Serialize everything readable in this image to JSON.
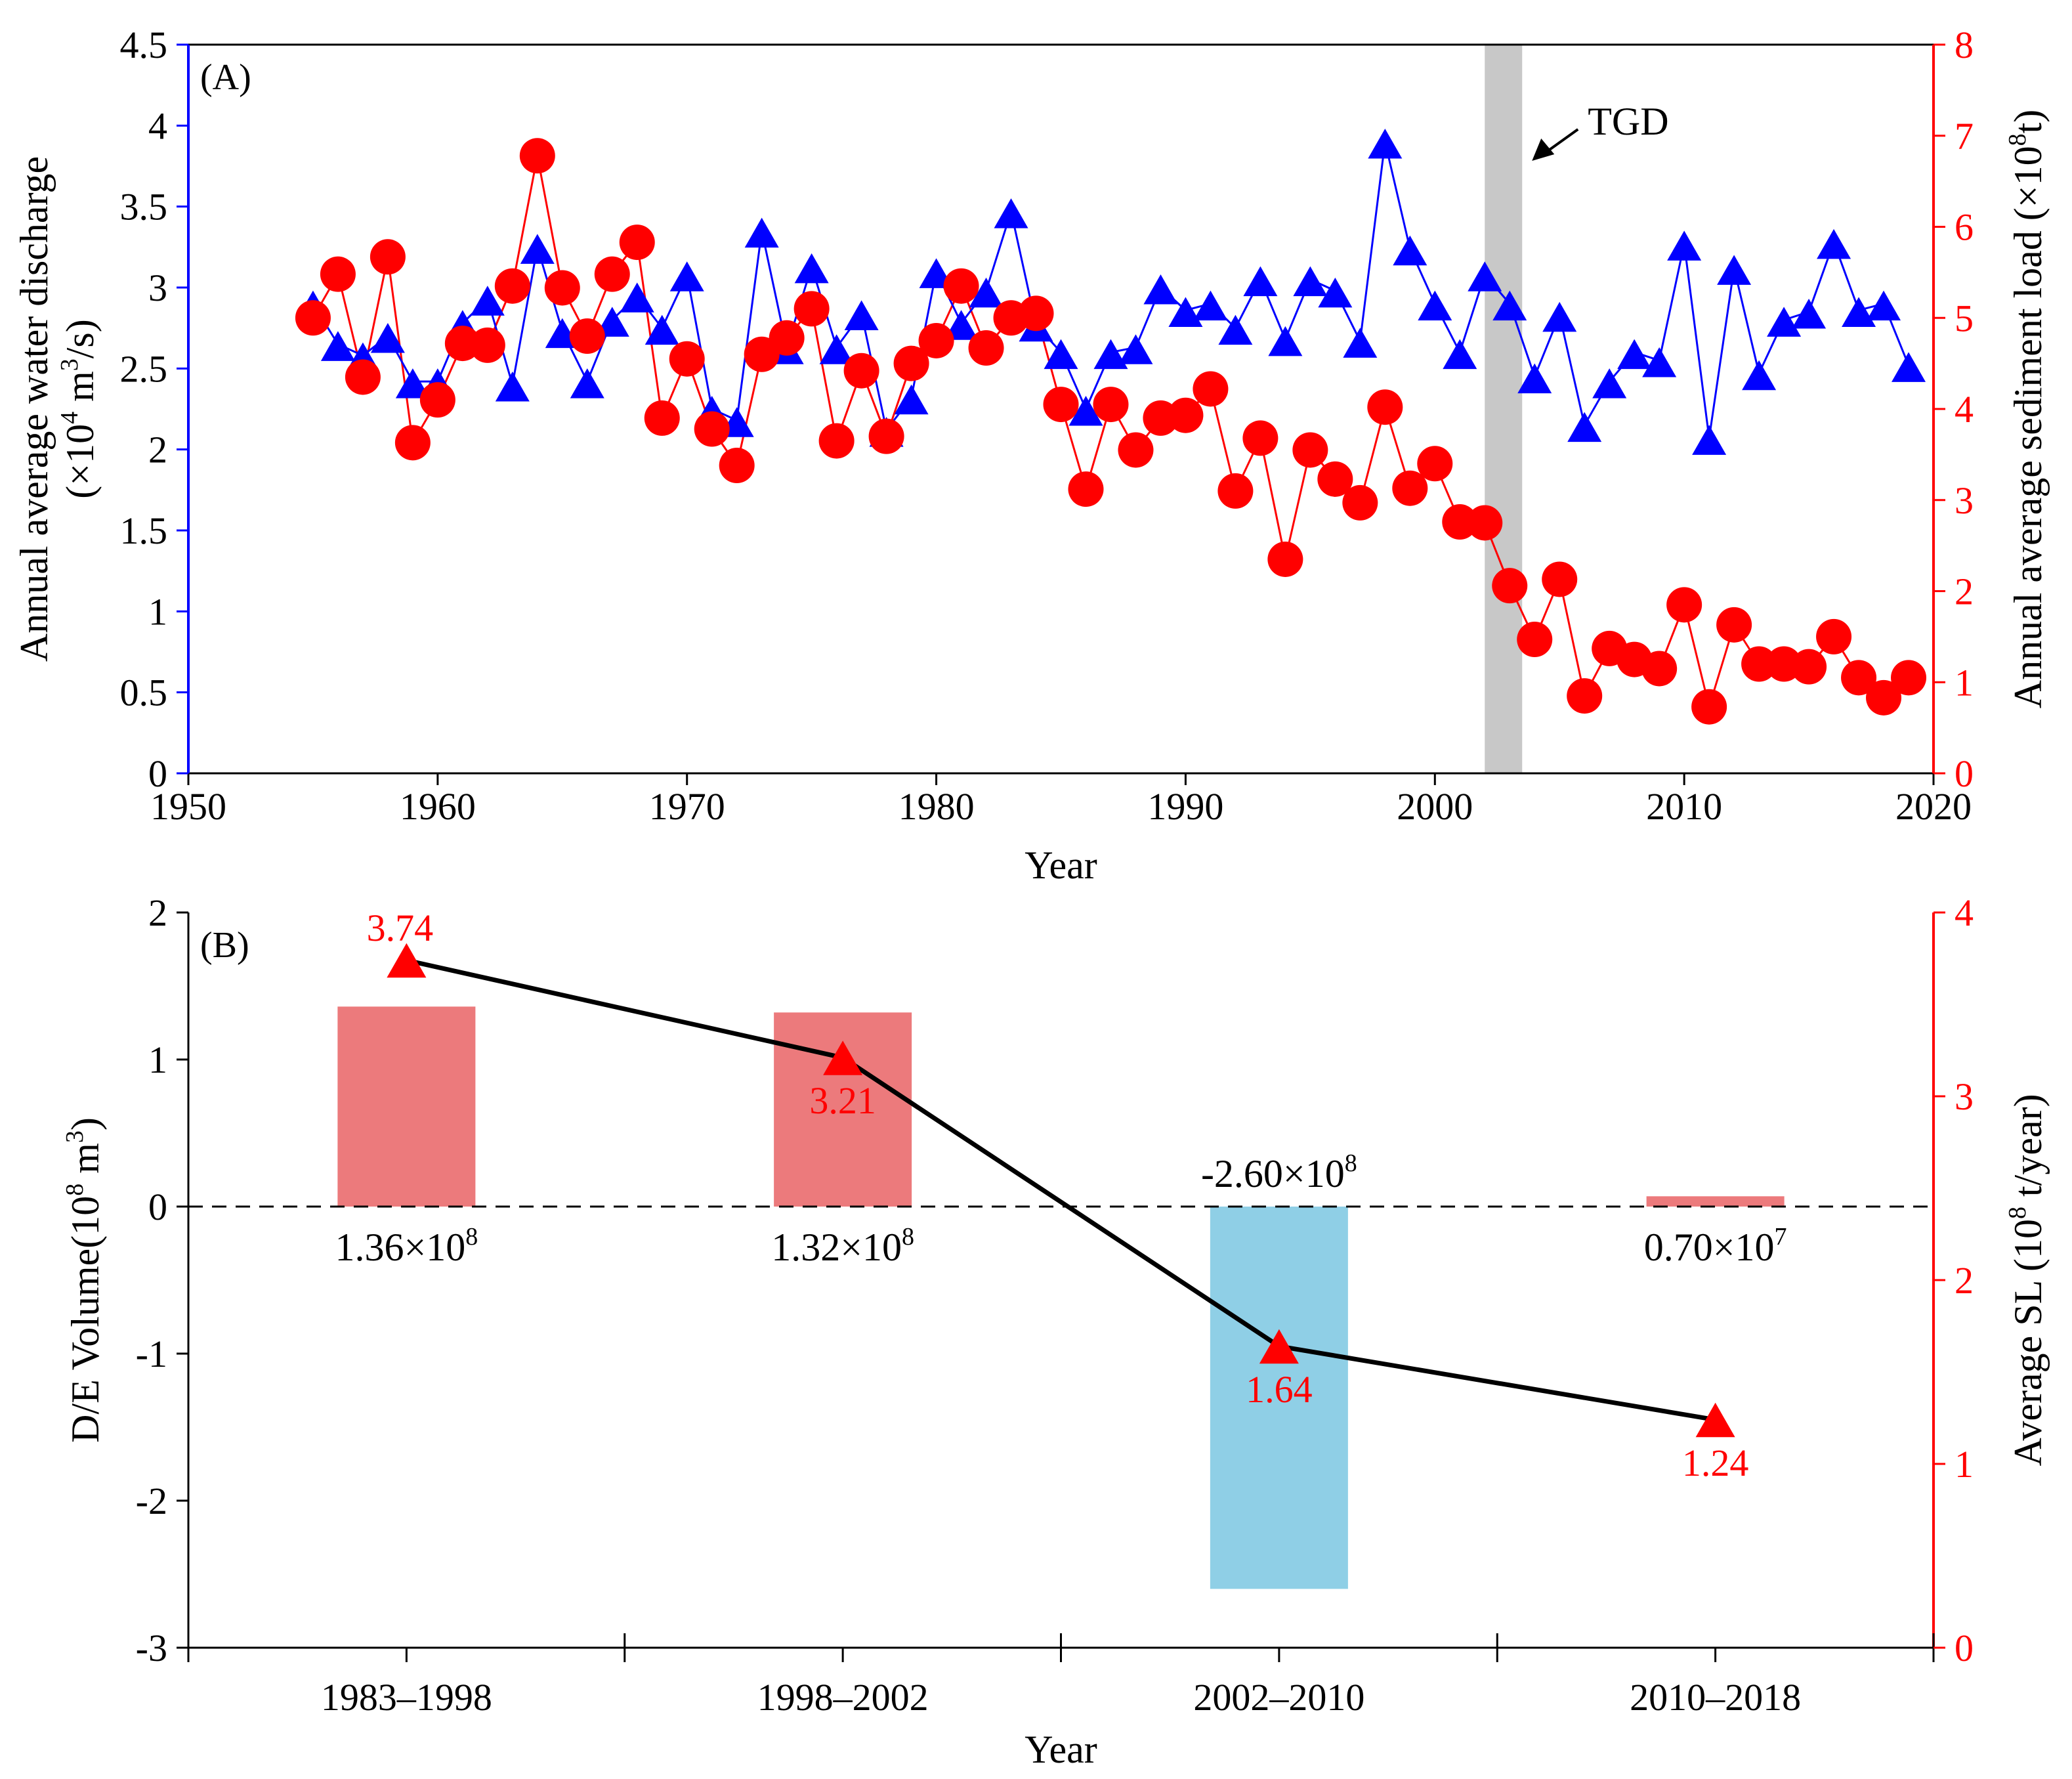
{
  "chart_data": [
    {
      "panel": "(A)",
      "type": "line",
      "xlabel": "Year",
      "ylabel_left": [
        "Annual average water  discharge",
        "(×10",
        "4",
        " m",
        "3",
        "/s)"
      ],
      "ylabel_right": [
        "Annual average sediment load (×10",
        "8",
        "t)"
      ],
      "xlim": [
        1950,
        2020
      ],
      "ylim_left": [
        0,
        4.5
      ],
      "ylim_right": [
        0,
        8
      ],
      "x_ticks": [
        "1950",
        "1960",
        "1970",
        "1980",
        "1990",
        "2000",
        "2010",
        "2020"
      ],
      "y_left_ticks": [
        "0",
        "0.5",
        "1",
        "1.5",
        "2",
        "2.5",
        "3",
        "3.5",
        "4",
        "4.5"
      ],
      "y_right_ticks": [
        "0",
        "1",
        "2",
        "3",
        "4",
        "5",
        "6",
        "7",
        "8"
      ],
      "annotation": {
        "text": "TGD",
        "shaded_years": [
          2002,
          2003.5
        ]
      },
      "colors": {
        "discharge": "#0000ff",
        "sediment": "#ff0000",
        "tgd_band": "#c8c8c8"
      },
      "series": [
        {
          "name": "Annual average water discharge",
          "axis": "left",
          "marker": "triangle",
          "x": [
            1955,
            1956,
            1957,
            1958,
            1959,
            1960,
            1961,
            1962,
            1963,
            1964,
            1965,
            1966,
            1967,
            1968,
            1969,
            1970,
            1971,
            1972,
            1973,
            1974,
            1975,
            1976,
            1977,
            1978,
            1979,
            1980,
            1981,
            1982,
            1983,
            1984,
            1985,
            1986,
            1987,
            1988,
            1989,
            1990,
            1991,
            1992,
            1993,
            1994,
            1995,
            1996,
            1997,
            1998,
            1999,
            2000,
            2001,
            2002,
            2003,
            2004,
            2005,
            2006,
            2007,
            2008,
            2009,
            2010,
            2011,
            2012,
            2013,
            2014,
            2015,
            2016,
            2017,
            2018,
            2019
          ],
          "values": [
            2.9,
            2.65,
            2.58,
            2.7,
            2.42,
            2.42,
            2.78,
            2.93,
            2.4,
            3.25,
            2.73,
            2.42,
            2.8,
            2.95,
            2.75,
            3.08,
            2.25,
            2.18,
            3.35,
            2.63,
            3.13,
            2.63,
            2.84,
            2.12,
            2.32,
            3.1,
            2.78,
            2.98,
            3.47,
            2.77,
            2.6,
            2.25,
            2.6,
            2.63,
            3.0,
            2.86,
            2.9,
            2.75,
            3.05,
            2.68,
            3.05,
            2.98,
            2.67,
            3.9,
            3.24,
            2.9,
            2.6,
            3.08,
            2.9,
            2.45,
            2.83,
            2.15,
            2.42,
            2.6,
            2.55,
            3.27,
            2.07,
            3.12,
            2.47,
            2.8,
            2.85,
            3.28,
            2.86,
            2.9,
            2.52
          ]
        },
        {
          "name": "Annual average sediment load",
          "axis": "right",
          "marker": "circle",
          "x": [
            1955,
            1956,
            1957,
            1958,
            1959,
            1960,
            1961,
            1962,
            1963,
            1964,
            1965,
            1966,
            1967,
            1968,
            1969,
            1970,
            1971,
            1972,
            1973,
            1974,
            1975,
            1976,
            1977,
            1978,
            1979,
            1980,
            1981,
            1982,
            1983,
            1984,
            1985,
            1986,
            1987,
            1988,
            1989,
            1990,
            1991,
            1992,
            1993,
            1994,
            1995,
            1996,
            1997,
            1998,
            1999,
            2000,
            2001,
            2002,
            2003,
            2004,
            2005,
            2006,
            2007,
            2008,
            2009,
            2010,
            2011,
            2012,
            2013,
            2014,
            2015,
            2016,
            2017,
            2018,
            2019
          ],
          "values": [
            5.0,
            5.48,
            4.35,
            5.67,
            3.63,
            4.1,
            4.72,
            4.7,
            5.35,
            6.78,
            5.33,
            4.8,
            5.48,
            5.83,
            3.9,
            4.55,
            3.78,
            3.38,
            4.6,
            4.78,
            5.1,
            3.65,
            4.42,
            3.7,
            4.5,
            4.75,
            5.35,
            4.67,
            5.0,
            5.05,
            4.05,
            3.12,
            4.05,
            3.55,
            3.9,
            3.93,
            4.22,
            3.1,
            3.68,
            2.35,
            3.55,
            3.23,
            2.97,
            4.02,
            3.13,
            3.4,
            2.76,
            2.75,
            2.06,
            1.47,
            2.13,
            0.85,
            1.37,
            1.25,
            1.15,
            1.85,
            0.73,
            1.63,
            1.2,
            1.2,
            1.17,
            1.5,
            1.05,
            0.83,
            1.05
          ]
        }
      ]
    },
    {
      "panel": "(B)",
      "type": "bar",
      "xlabel": "Year",
      "ylabel_left": [
        "D/E Volume(10",
        "8",
        " m",
        "3",
        ")"
      ],
      "ylabel_right": [
        "Average SL (10",
        "8",
        " t/year)"
      ],
      "categories": [
        "1983–1998",
        "1998–2002",
        "2002–2010",
        "2010–2018"
      ],
      "ylim_left": [
        -3,
        2
      ],
      "ylim_right": [
        0,
        4
      ],
      "y_left_ticks": [
        "-3",
        "-2",
        "-1",
        "0",
        "1",
        "2"
      ],
      "y_right_ticks": [
        "0",
        "1",
        "2",
        "3",
        "4"
      ],
      "colors": {
        "deposition": "#ec7a7c",
        "erosion": "#8fcfe6",
        "line": "#000000",
        "marker": "#ff0000"
      },
      "series": [
        {
          "name": "D/E Volume",
          "axis": "left",
          "values": [
            1.36,
            1.32,
            -2.6,
            0.07
          ],
          "labels": [
            {
              "base": "1.36×10",
              "exp": "8"
            },
            {
              "base": "1.32×10",
              "exp": "8"
            },
            {
              "base": "-2.60×10",
              "exp": "8"
            },
            {
              "base": "0.70×10",
              "exp": "7"
            }
          ]
        },
        {
          "name": "Average SL",
          "axis": "right",
          "marker": "triangle",
          "values": [
            3.74,
            3.21,
            1.64,
            1.24
          ],
          "labels": [
            "3.74",
            "3.21",
            "1.64",
            "1.24"
          ]
        }
      ]
    }
  ]
}
